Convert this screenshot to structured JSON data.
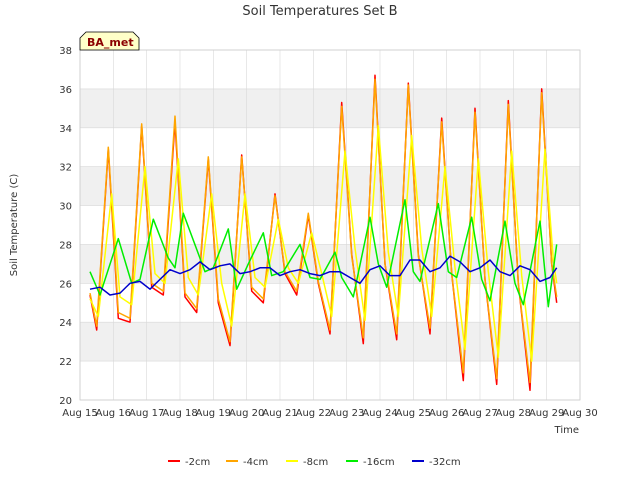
{
  "chart_data": {
    "type": "line",
    "title": "Soil Temperatures Set B",
    "xlabel": "Time",
    "ylabel": "Soil Temperature (C)",
    "station_badge": "BA_met",
    "ylim": [
      20,
      38
    ],
    "yticks": [
      20,
      22,
      24,
      26,
      28,
      30,
      32,
      34,
      36,
      38
    ],
    "xlim": [
      15,
      30
    ],
    "xticks": [
      15,
      16,
      17,
      18,
      19,
      20,
      21,
      22,
      23,
      24,
      25,
      26,
      27,
      28,
      29,
      30
    ],
    "xtick_labels": [
      "Aug 15",
      "Aug 16",
      "Aug 17",
      "Aug 18",
      "Aug 19",
      "Aug 20",
      "Aug 21",
      "Aug 22",
      "Aug 23",
      "Aug 24",
      "Aug 25",
      "Aug 26",
      "Aug 27",
      "Aug 28",
      "Aug 29",
      "Aug 30"
    ],
    "grid": true,
    "legend_position": "bottom",
    "series": [
      {
        "name": "-2cm",
        "color": "#ff0000",
        "x": [
          15.3,
          15.5,
          15.85,
          16.15,
          16.5,
          16.85,
          17.15,
          17.5,
          17.85,
          18.15,
          18.5,
          18.85,
          19.15,
          19.5,
          19.85,
          20.15,
          20.5,
          20.85,
          21.15,
          21.5,
          21.85,
          22.15,
          22.5,
          22.85,
          23.15,
          23.5,
          23.85,
          24.15,
          24.5,
          24.85,
          25.15,
          25.5,
          25.85,
          26.15,
          26.5,
          26.85,
          27.15,
          27.5,
          27.85,
          28.15,
          28.5,
          28.85,
          29.15,
          29.3
        ],
        "y": [
          25.4,
          23.6,
          32.9,
          24.2,
          24.0,
          34.1,
          25.8,
          25.4,
          34.3,
          25.3,
          24.5,
          32.4,
          25.0,
          22.8,
          32.6,
          25.6,
          25.0,
          30.6,
          26.5,
          25.4,
          29.5,
          26.0,
          23.4,
          35.3,
          27.5,
          22.9,
          36.7,
          27.0,
          23.1,
          36.3,
          27.5,
          23.4,
          34.5,
          26.5,
          21.0,
          35.0,
          26.2,
          20.8,
          35.4,
          26.0,
          20.5,
          36.0,
          27.0,
          25.0
        ]
      },
      {
        "name": "-4cm",
        "color": "#ffa500",
        "x": [
          15.3,
          15.5,
          15.85,
          16.15,
          16.5,
          16.85,
          17.15,
          17.5,
          17.85,
          18.15,
          18.5,
          18.85,
          19.15,
          19.5,
          19.85,
          20.15,
          20.5,
          20.85,
          21.15,
          21.5,
          21.85,
          22.15,
          22.5,
          22.85,
          23.15,
          23.5,
          23.85,
          24.15,
          24.5,
          24.85,
          25.15,
          25.5,
          25.85,
          26.15,
          26.5,
          26.85,
          27.15,
          27.5,
          27.85,
          28.15,
          28.5,
          28.85,
          29.15,
          29.3
        ],
        "y": [
          25.5,
          23.8,
          33.0,
          24.5,
          24.2,
          34.2,
          26.0,
          25.6,
          34.6,
          25.5,
          24.7,
          32.5,
          25.2,
          23.0,
          32.5,
          25.8,
          25.2,
          30.5,
          26.6,
          25.6,
          29.6,
          26.1,
          23.6,
          35.1,
          27.4,
          23.2,
          36.5,
          27.0,
          23.4,
          36.2,
          27.4,
          23.7,
          34.3,
          26.5,
          21.4,
          34.8,
          26.2,
          21.1,
          35.2,
          26.0,
          20.9,
          35.8,
          27.0,
          25.3
        ]
      },
      {
        "name": "-8cm",
        "color": "#ffff00",
        "x": [
          15.3,
          15.55,
          15.95,
          16.2,
          16.55,
          16.95,
          17.25,
          17.55,
          17.95,
          18.25,
          18.55,
          18.95,
          19.25,
          19.55,
          19.95,
          20.25,
          20.55,
          20.95,
          21.25,
          21.55,
          21.95,
          22.25,
          22.55,
          22.95,
          23.25,
          23.55,
          23.95,
          24.25,
          24.55,
          24.95,
          25.25,
          25.55,
          25.95,
          26.25,
          26.55,
          26.95,
          27.25,
          27.55,
          27.95,
          28.25,
          28.55,
          28.95,
          29.2,
          29.3
        ],
        "y": [
          25.2,
          24.3,
          30.6,
          25.3,
          24.9,
          32.0,
          26.5,
          26.0,
          32.4,
          26.3,
          25.4,
          30.6,
          26.0,
          23.8,
          30.6,
          26.3,
          25.8,
          29.3,
          26.8,
          26.0,
          28.6,
          26.5,
          24.3,
          32.8,
          27.8,
          24.1,
          34.1,
          27.6,
          24.3,
          33.6,
          27.8,
          24.3,
          32.0,
          26.8,
          22.6,
          32.4,
          26.6,
          22.2,
          32.8,
          26.4,
          22.0,
          32.9,
          27.2,
          26.0
        ]
      },
      {
        "name": "-16cm",
        "color": "#00ee00",
        "x": [
          15.3,
          15.6,
          16.15,
          16.55,
          16.8,
          17.2,
          17.65,
          17.85,
          18.1,
          18.75,
          19.0,
          19.45,
          19.7,
          20.05,
          20.5,
          20.75,
          21.1,
          21.6,
          21.9,
          22.2,
          22.65,
          22.85,
          23.2,
          23.7,
          23.95,
          24.2,
          24.75,
          25.0,
          25.2,
          25.75,
          26.05,
          26.3,
          26.75,
          27.05,
          27.3,
          27.75,
          28.05,
          28.3,
          28.8,
          29.05,
          29.3
        ],
        "y": [
          26.6,
          25.4,
          28.3,
          26.0,
          26.2,
          29.3,
          27.3,
          26.8,
          29.6,
          26.6,
          26.8,
          28.8,
          25.7,
          27.0,
          28.6,
          26.4,
          26.6,
          28.0,
          26.3,
          26.2,
          27.6,
          26.3,
          25.3,
          29.4,
          27.0,
          25.8,
          30.3,
          26.6,
          26.1,
          30.1,
          26.6,
          26.3,
          29.4,
          26.2,
          25.1,
          29.2,
          26.0,
          24.9,
          29.2,
          24.8,
          28.0
        ]
      },
      {
        "name": "-32cm",
        "color": "#0000cc",
        "x": [
          15.3,
          15.6,
          15.9,
          16.2,
          16.5,
          16.8,
          17.1,
          17.4,
          17.7,
          18.0,
          18.3,
          18.6,
          18.9,
          19.2,
          19.5,
          19.8,
          20.1,
          20.4,
          20.7,
          21.0,
          21.3,
          21.6,
          21.9,
          22.2,
          22.5,
          22.8,
          23.1,
          23.4,
          23.7,
          24.0,
          24.3,
          24.6,
          24.9,
          25.2,
          25.5,
          25.8,
          26.1,
          26.4,
          26.7,
          27.0,
          27.3,
          27.6,
          27.9,
          28.2,
          28.5,
          28.8,
          29.1,
          29.3
        ],
        "y": [
          25.7,
          25.8,
          25.4,
          25.5,
          26.0,
          26.1,
          25.7,
          26.2,
          26.7,
          26.5,
          26.7,
          27.1,
          26.7,
          26.9,
          27.0,
          26.5,
          26.6,
          26.8,
          26.8,
          26.4,
          26.6,
          26.7,
          26.5,
          26.4,
          26.6,
          26.6,
          26.3,
          26.0,
          26.7,
          26.9,
          26.4,
          26.4,
          27.2,
          27.2,
          26.6,
          26.8,
          27.4,
          27.1,
          26.6,
          26.8,
          27.2,
          26.6,
          26.4,
          26.9,
          26.7,
          26.1,
          26.3,
          26.8
        ]
      }
    ]
  },
  "colors": {
    "band": "#f0f0f0",
    "grid": "#d8d8d8",
    "axis": "#cccccc",
    "badge_fill": "#ffffc8",
    "badge_text": "#8b0000"
  }
}
